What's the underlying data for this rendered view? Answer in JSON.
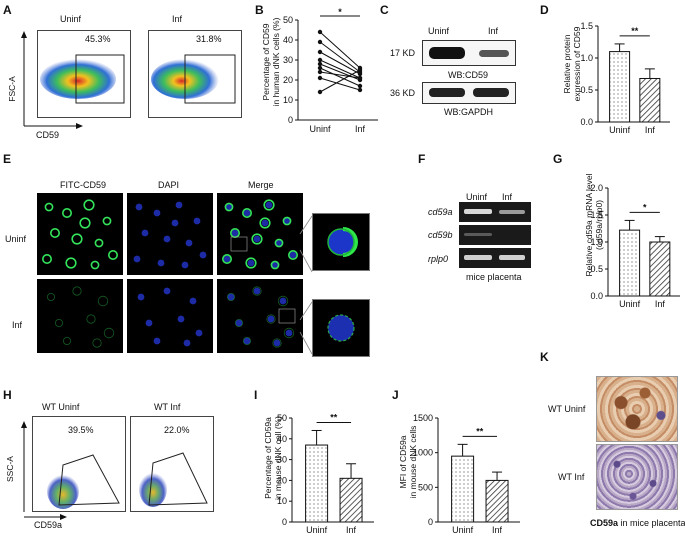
{
  "panels": {
    "A": {
      "letter": "A",
      "left_title": "Uninf",
      "right_title": "Inf",
      "left_pct": "45.3%",
      "right_pct": "31.8%",
      "yaxis": "FSC-A",
      "xaxis": "CD59"
    },
    "B": {
      "letter": "B",
      "ylabel_1": "Percentage of CD59",
      "ylabel_2": "in human dNK cells (%)",
      "sig": "*",
      "x1": "Uninf",
      "x2": "Inf",
      "yticks": [
        "0",
        "10",
        "20",
        "30",
        "40",
        "50"
      ]
    },
    "C": {
      "letter": "C",
      "col1": "Uninf",
      "col2": "Inf",
      "kd1": "17 KD",
      "kd2": "36 KD",
      "wb1": "WB:CD59",
      "wb2": "WB:GAPDH"
    },
    "D": {
      "letter": "D",
      "ylabel_1": "Relative protein",
      "ylabel_2": "expression of CD59",
      "sig": "**",
      "x1": "Uninf",
      "x2": "Inf",
      "yticks": [
        "0.0",
        "0.5",
        "1.0",
        "1.5"
      ]
    },
    "E": {
      "letter": "E",
      "col1": "FITC-CD59",
      "col2": "DAPI",
      "col3": "Merge",
      "row1": "Uninf",
      "row2": "Inf"
    },
    "F": {
      "letter": "F",
      "col1": "Uninf",
      "col2": "Inf",
      "gene1": "cd59a",
      "gene2": "cd59b",
      "gene3": "rplp0",
      "caption": "mice placenta"
    },
    "G": {
      "letter": "G",
      "ylabel_1": "Relative cd59a mRNA level",
      "ylabel_2": "(cd59a/rplp0)",
      "sig": "*",
      "x1": "Uninf",
      "x2": "Inf",
      "yticks": [
        "0.0",
        "0.5",
        "1.0",
        "1.5",
        "2.0"
      ]
    },
    "H": {
      "letter": "H",
      "left_title": "WT Uninf",
      "right_title": "WT Inf",
      "left_pct": "39.5%",
      "right_pct": "22.0%",
      "yaxis": "SSC-A",
      "xaxis": "CD59a"
    },
    "I": {
      "letter": "I",
      "ylabel_1": "Percentage of CD59a",
      "ylabel_2": "in mouse dNK cell (%)",
      "sig": "**",
      "x1": "Uninf",
      "x2": "Inf",
      "yticks": [
        "0",
        "10",
        "20",
        "30",
        "40",
        "50"
      ]
    },
    "J": {
      "letter": "J",
      "ylabel_1": "MFI of CD59a",
      "ylabel_2": "in mouse dNK cells",
      "sig": "**",
      "x1": "Uninf",
      "x2": "Inf",
      "yticks": [
        "0",
        "500",
        "1000",
        "1500"
      ]
    },
    "K": {
      "letter": "K",
      "row1": "WT Uninf",
      "row2": "WT Inf",
      "caption_bold": "CD59a",
      "caption_rest": " in mice placenta"
    }
  },
  "chart_data": [
    {
      "type": "line",
      "panel": "B",
      "categories": [
        "Uninf",
        "Inf"
      ],
      "ylim": [
        0,
        50
      ],
      "series": [
        {
          "values": [
            44,
            26
          ]
        },
        {
          "values": [
            39,
            24
          ]
        },
        {
          "values": [
            34,
            23
          ]
        },
        {
          "values": [
            30,
            21
          ]
        },
        {
          "values": [
            28,
            20
          ]
        },
        {
          "values": [
            26,
            17
          ]
        },
        {
          "values": [
            24,
            21
          ]
        },
        {
          "values": [
            21,
            15
          ]
        },
        {
          "values": [
            14,
            25
          ]
        }
      ]
    },
    {
      "type": "bar",
      "panel": "D",
      "categories": [
        "Uninf",
        "Inf"
      ],
      "values": [
        1.1,
        0.68
      ],
      "errors": [
        0.12,
        0.15
      ],
      "ylim": [
        0,
        1.5
      ]
    },
    {
      "type": "bar",
      "panel": "G",
      "categories": [
        "Uninf",
        "Inf"
      ],
      "values": [
        1.22,
        1.0
      ],
      "errors": [
        0.18,
        0.1
      ],
      "ylim": [
        0,
        2.0
      ]
    },
    {
      "type": "bar",
      "panel": "I",
      "categories": [
        "Uninf",
        "Inf"
      ],
      "values": [
        37,
        21
      ],
      "errors": [
        7,
        7
      ],
      "ylim": [
        0,
        50
      ]
    },
    {
      "type": "bar",
      "panel": "J",
      "categories": [
        "Uninf",
        "Inf"
      ],
      "values": [
        950,
        600
      ],
      "errors": [
        170,
        120
      ],
      "ylim": [
        0,
        1500
      ]
    }
  ]
}
